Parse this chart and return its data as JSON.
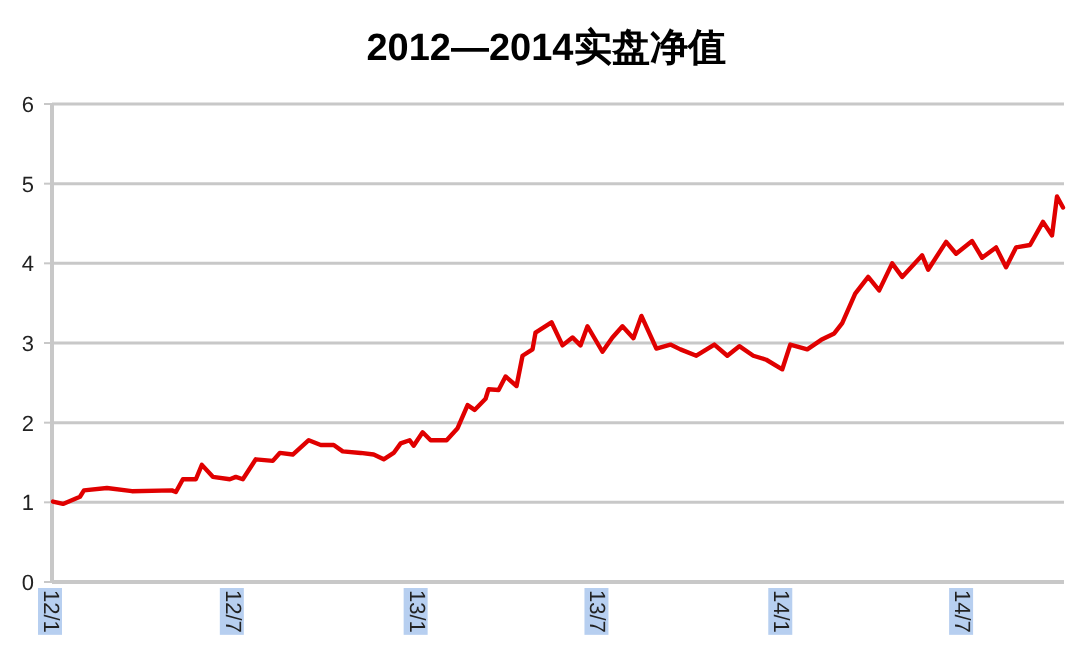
{
  "chart_data": {
    "type": "line",
    "title": "2012—2014实盘净值",
    "x": [
      "2012-01-02",
      "2012-01-12",
      "2012-01-29",
      "2012-02-02",
      "2012-02-25",
      "2012-03-21",
      "2012-04-30",
      "2012-05-04",
      "2012-05-11",
      "2012-05-24",
      "2012-05-30",
      "2012-06-10",
      "2012-06-27",
      "2012-07-03",
      "2012-07-10",
      "2012-07-23",
      "2012-08-09",
      "2012-08-16",
      "2012-08-29",
      "2012-09-14",
      "2012-09-26",
      "2012-10-09",
      "2012-10-18",
      "2012-11-05",
      "2012-11-18",
      "2012-11-28",
      "2012-12-08",
      "2012-12-15",
      "2012-12-24",
      "2012-12-28",
      "2013-01-06",
      "2013-01-14",
      "2013-01-30",
      "2013-02-10",
      "2013-02-20",
      "2013-02-27",
      "2013-03-10",
      "2013-03-13",
      "2013-03-23",
      "2013-03-30",
      "2013-04-10",
      "2013-04-16",
      "2013-04-26",
      "2013-04-29",
      "2013-05-15",
      "2013-05-26",
      "2013-06-05",
      "2013-06-13",
      "2013-06-20",
      "2013-07-05",
      "2013-07-15",
      "2013-07-25",
      "2013-08-05",
      "2013-08-13",
      "2013-08-28",
      "2013-09-11",
      "2013-09-21",
      "2013-10-07",
      "2013-10-25",
      "2013-11-07",
      "2013-11-19",
      "2013-12-03",
      "2013-12-16",
      "2014-01-01",
      "2014-01-09",
      "2014-01-26",
      "2014-02-09",
      "2014-02-22",
      "2014-03-02",
      "2014-03-15",
      "2014-03-28",
      "2014-04-08",
      "2014-04-21",
      "2014-05-01",
      "2014-05-21",
      "2014-05-27",
      "2014-06-14",
      "2014-06-24",
      "2014-07-10",
      "2014-07-20",
      "2014-08-03",
      "2014-08-13",
      "2014-08-23",
      "2014-09-06",
      "2014-09-19",
      "2014-09-28",
      "2014-10-03",
      "2014-10-09"
    ],
    "series": [
      {
        "color": "#e00000",
        "values": [
          1.01,
          0.98,
          1.07,
          1.15,
          1.18,
          1.14,
          1.15,
          1.13,
          1.29,
          1.29,
          1.47,
          1.32,
          1.29,
          1.32,
          1.29,
          1.54,
          1.52,
          1.62,
          1.6,
          1.78,
          1.72,
          1.72,
          1.64,
          1.62,
          1.6,
          1.54,
          1.62,
          1.74,
          1.78,
          1.71,
          1.88,
          1.78,
          1.78,
          1.93,
          2.22,
          2.16,
          2.3,
          2.42,
          2.41,
          2.58,
          2.46,
          2.84,
          2.92,
          3.13,
          3.26,
          2.97,
          3.07,
          2.97,
          3.21,
          2.89,
          3.07,
          3.21,
          3.06,
          3.34,
          2.93,
          2.98,
          2.92,
          2.84,
          2.98,
          2.84,
          2.96,
          2.84,
          2.79,
          2.67,
          2.98,
          2.92,
          3.04,
          3.12,
          3.25,
          3.62,
          3.83,
          3.66,
          4.0,
          3.83,
          4.1,
          3.92,
          4.27,
          4.12,
          4.28,
          4.07,
          4.2,
          3.95,
          4.2,
          4.23,
          4.52,
          4.35,
          4.84,
          4.7
        ]
      }
    ],
    "xlim": [
      "2012-01-01",
      "2014-10-10"
    ],
    "xticks": [
      {
        "value": "2012-01-01",
        "label": "12/1"
      },
      {
        "value": "2012-07-01",
        "label": "12/7"
      },
      {
        "value": "2013-01-01",
        "label": "13/1"
      },
      {
        "value": "2013-07-01",
        "label": "13/7"
      },
      {
        "value": "2014-01-01",
        "label": "14/1"
      },
      {
        "value": "2014-07-01",
        "label": "14/7"
      }
    ],
    "ylim": [
      0,
      6
    ],
    "yticks": [
      0,
      1,
      2,
      3,
      4,
      5,
      6
    ],
    "grid": "y"
  }
}
